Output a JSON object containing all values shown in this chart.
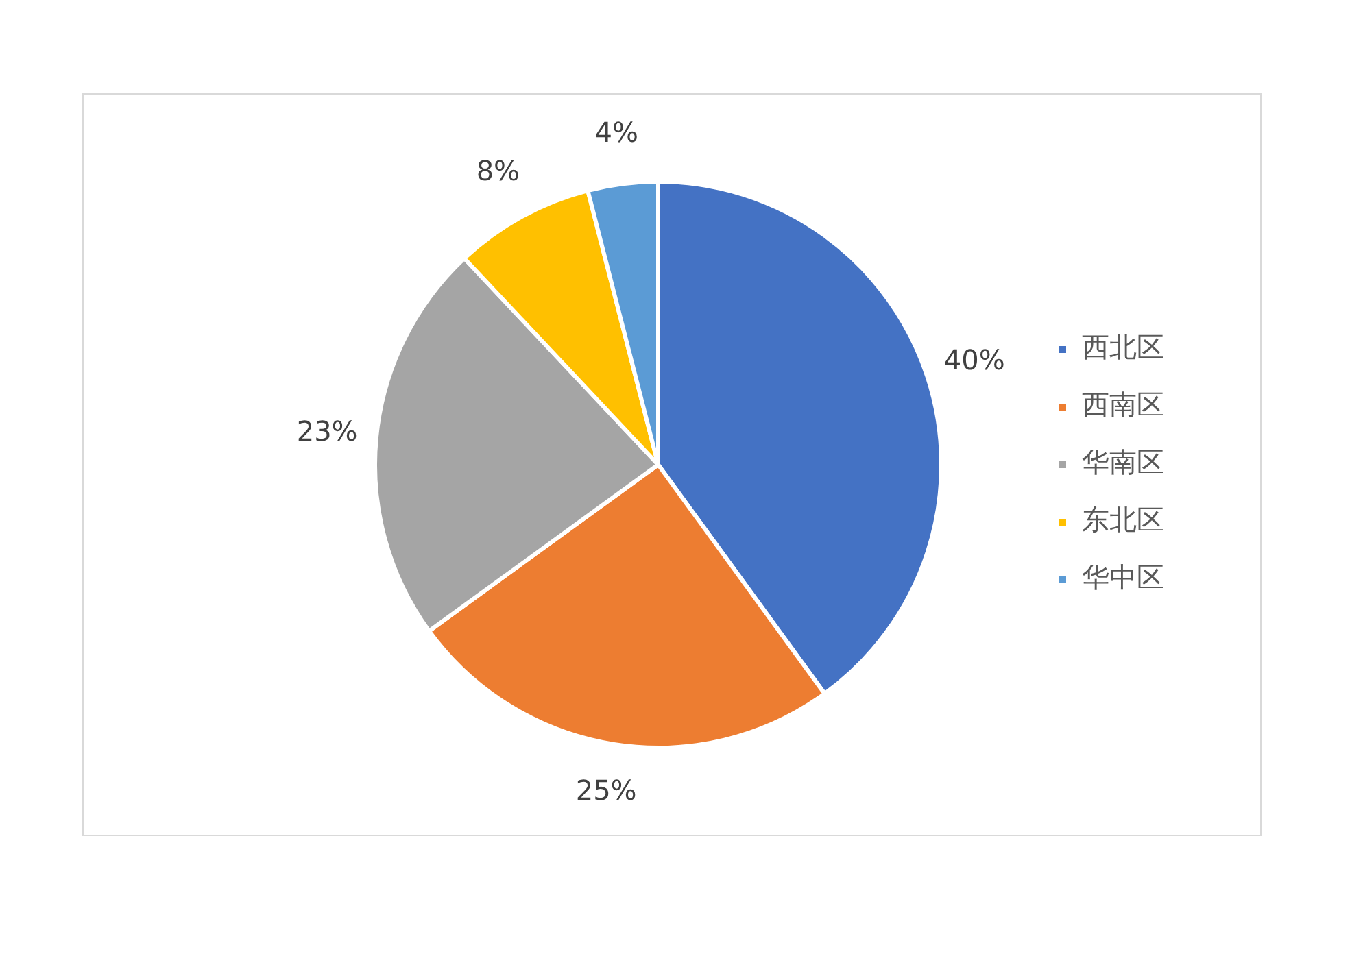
{
  "chart_data": {
    "type": "pie",
    "categories": [
      "西北区",
      "西南区",
      "华南区",
      "东北区",
      "华中区"
    ],
    "values": [
      40,
      25,
      23,
      8,
      4
    ],
    "value_labels": [
      "40%",
      "25%",
      "23%",
      "8%",
      "4%"
    ],
    "colors": [
      "#4472c4",
      "#ed7d31",
      "#a5a5a5",
      "#ffc000",
      "#5b9bd5"
    ],
    "legend": "right"
  }
}
